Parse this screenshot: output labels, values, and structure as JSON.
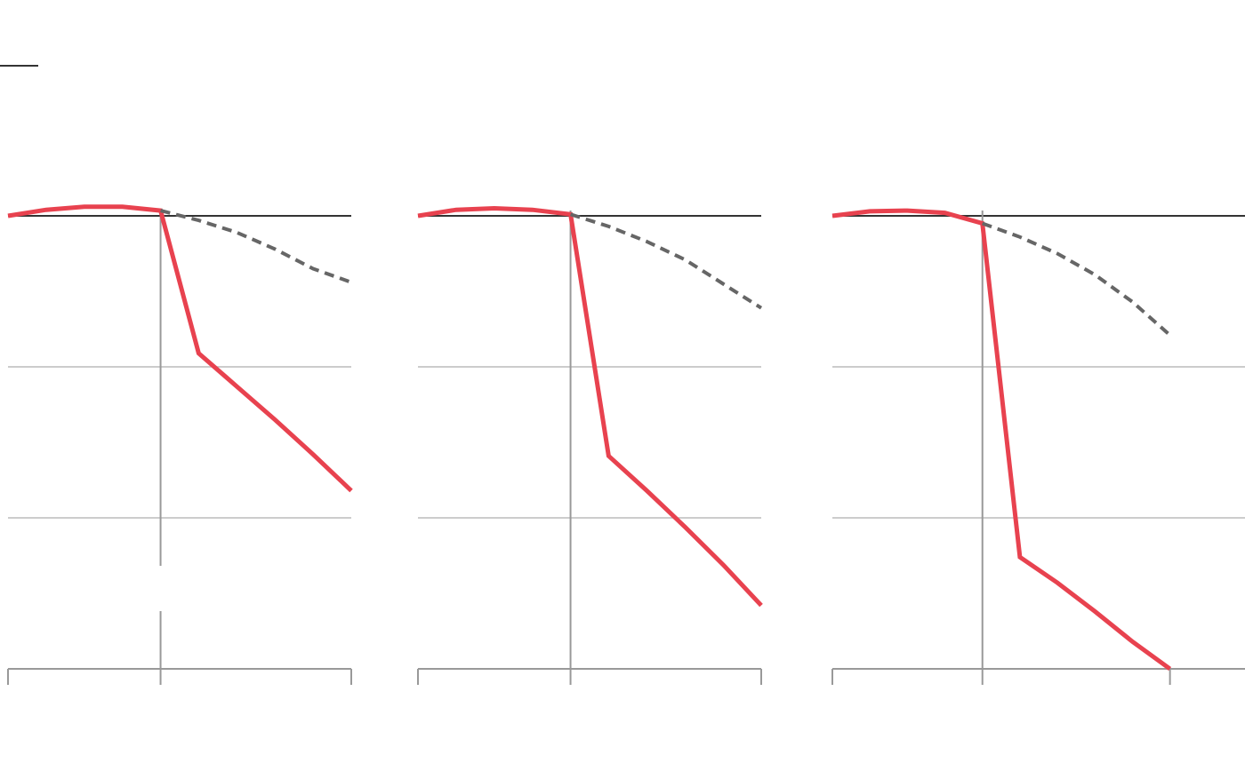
{
  "colors": {
    "actual": "#e8424f",
    "projection": "#666666",
    "baseline": "#333333",
    "grid": "#bbbbbb",
    "axis": "#999999",
    "accent_rule": "#333333"
  },
  "chart_data": [
    {
      "type": "line",
      "title": "",
      "xlabel": "",
      "ylabel": "",
      "xlim": [
        0,
        9
      ],
      "ylim": [
        -3,
        0
      ],
      "baseline": 0,
      "grid": "horizontal",
      "x_ticks": [
        0,
        4,
        9
      ],
      "event_x": 4,
      "event_line_gap": true,
      "series": [
        {
          "style": "solid",
          "x": [
            0,
            1,
            2,
            3,
            4,
            5,
            6,
            7,
            8,
            9
          ],
          "y": [
            0,
            0.04,
            0.06,
            0.06,
            0.035,
            -0.91,
            -1.13,
            -1.35,
            -1.58,
            -1.82
          ]
        },
        {
          "style": "dashed",
          "x": [
            4,
            5,
            6,
            7,
            8,
            9
          ],
          "y": [
            0.035,
            -0.03,
            -0.11,
            -0.22,
            -0.35,
            -0.44
          ]
        }
      ]
    },
    {
      "type": "line",
      "title": "",
      "xlabel": "",
      "ylabel": "",
      "xlim": [
        0,
        9
      ],
      "ylim": [
        -3,
        0
      ],
      "baseline": 0,
      "grid": "horizontal",
      "x_ticks": [
        0,
        4,
        9
      ],
      "event_x": 4,
      "event_line_gap": false,
      "series": [
        {
          "style": "solid",
          "x": [
            0,
            1,
            2,
            3,
            4,
            5,
            6,
            7,
            8,
            9
          ],
          "y": [
            0,
            0.04,
            0.05,
            0.04,
            0.01,
            -1.59,
            -1.82,
            -2.06,
            -2.31,
            -2.58
          ]
        },
        {
          "style": "dashed",
          "x": [
            4,
            5,
            6,
            7,
            8,
            9
          ],
          "y": [
            0.01,
            -0.07,
            -0.17,
            -0.29,
            -0.45,
            -0.61
          ]
        }
      ]
    },
    {
      "type": "line",
      "title": "",
      "xlabel": "",
      "ylabel": "",
      "xlim": [
        0,
        11
      ],
      "ylim": [
        -3,
        0
      ],
      "baseline": 0,
      "grid": "horizontal",
      "x_ticks": [
        0,
        4,
        9
      ],
      "event_x": 4,
      "event_line_gap": false,
      "series": [
        {
          "style": "solid",
          "x": [
            0,
            1,
            2,
            3,
            4,
            5,
            6,
            7,
            8,
            9
          ],
          "y": [
            0,
            0.03,
            0.035,
            0.02,
            -0.05,
            -2.26,
            -2.43,
            -2.62,
            -2.82,
            -3.0
          ]
        },
        {
          "style": "dashed",
          "x": [
            4,
            5,
            6,
            7,
            8,
            9
          ],
          "y": [
            -0.05,
            -0.14,
            -0.25,
            -0.39,
            -0.57,
            -0.79
          ]
        }
      ]
    }
  ]
}
